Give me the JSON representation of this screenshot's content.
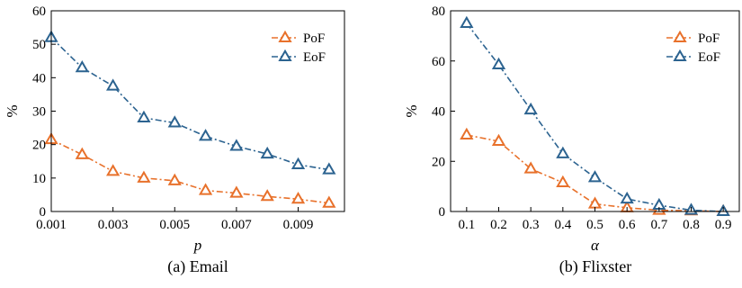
{
  "chart_data": [
    {
      "type": "line",
      "caption": "(a) Email",
      "xlabel": "p",
      "ylabel": "%",
      "xlim": [
        0.001,
        0.0105
      ],
      "ylim": [
        0,
        60
      ],
      "xticks": [
        0.001,
        0.003,
        0.005,
        0.007,
        0.009
      ],
      "xtick_labels": [
        "0.001",
        "0.003",
        "0.005",
        "0.007",
        "0.009"
      ],
      "yticks": [
        0,
        10,
        20,
        30,
        40,
        50,
        60
      ],
      "ytick_labels": [
        "0",
        "10",
        "20",
        "30",
        "40",
        "50",
        "60"
      ],
      "x": [
        0.001,
        0.002,
        0.003,
        0.004,
        0.005,
        0.006,
        0.007,
        0.008,
        0.009,
        0.01
      ],
      "series": [
        {
          "name": "PoF",
          "color": "#e8712b",
          "values": [
            21.5,
            17,
            12,
            10,
            9.2,
            6.3,
            5.5,
            4.5,
            3.7,
            2.5
          ]
        },
        {
          "name": "EoF",
          "color": "#2c6390",
          "values": [
            52,
            43,
            37.5,
            28,
            26.5,
            22.5,
            19.5,
            17.2,
            14,
            12.5
          ]
        }
      ],
      "legend": "top-right",
      "grid": false,
      "marker": "hollow-triangle",
      "line_style": "dash-dot"
    },
    {
      "type": "line",
      "caption": "(b) Flixster",
      "xlabel": "α",
      "ylabel": "%",
      "xlim": [
        0.05,
        0.95
      ],
      "ylim": [
        0,
        80
      ],
      "xticks": [
        0.1,
        0.2,
        0.3,
        0.4,
        0.5,
        0.6,
        0.7,
        0.8,
        0.9
      ],
      "xtick_labels": [
        "0.1",
        "0.2",
        "0.3",
        "0.4",
        "0.5",
        "0.6",
        "0.7",
        "0.8",
        "0.9"
      ],
      "yticks": [
        0,
        20,
        40,
        60,
        80
      ],
      "ytick_labels": [
        "0",
        "20",
        "40",
        "60",
        "80"
      ],
      "x": [
        0.1,
        0.2,
        0.3,
        0.4,
        0.5,
        0.6,
        0.7,
        0.8,
        0.9
      ],
      "series": [
        {
          "name": "PoF",
          "color": "#e8712b",
          "values": [
            30.5,
            28,
            17,
            11.5,
            3,
            1.5,
            0.5,
            0.3,
            0
          ]
        },
        {
          "name": "EoF",
          "color": "#2c6390",
          "values": [
            75,
            58.5,
            40.5,
            23,
            13.5,
            5,
            2.5,
            0.5,
            0
          ]
        }
      ],
      "legend": "top-right",
      "grid": false,
      "marker": "hollow-triangle",
      "line_style": "dash-dot"
    }
  ]
}
